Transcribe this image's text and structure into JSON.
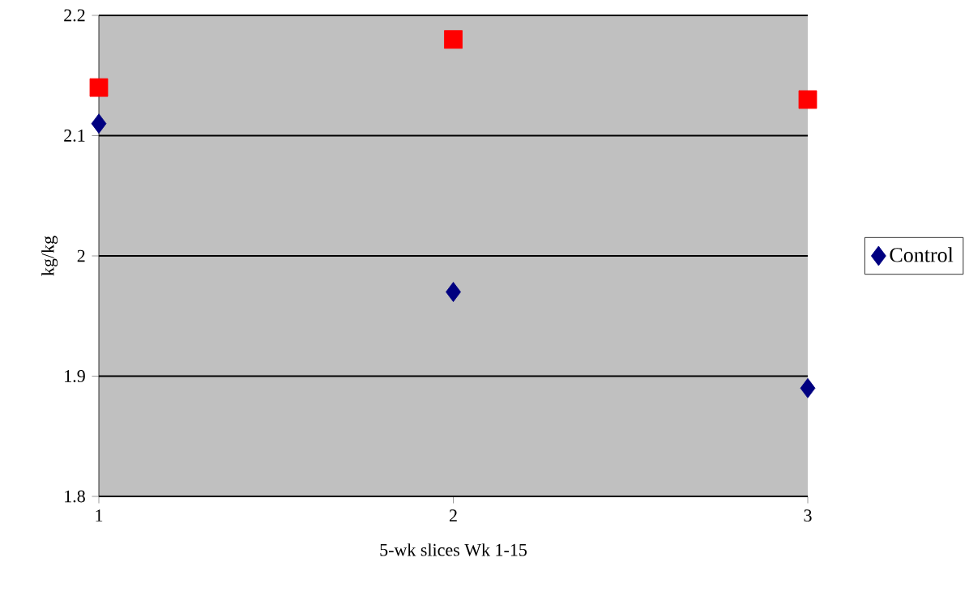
{
  "chart_data": {
    "type": "scatter",
    "xlabel": "5-wk slices Wk 1-15",
    "ylabel": "kg/kg",
    "x": [
      1,
      2,
      3
    ],
    "series": [
      {
        "name": "Control",
        "color": "#000080",
        "marker": "diamond",
        "values": [
          2.11,
          1.97,
          1.89
        ]
      },
      {
        "color": "#ff0000",
        "marker": "square",
        "values": [
          2.14,
          2.18,
          2.13
        ]
      }
    ],
    "xlim": [
      1,
      3
    ],
    "xticks": [
      1,
      2,
      3
    ],
    "ylim": [
      1.8,
      2.2
    ],
    "yticks": [
      1.8,
      1.9,
      2,
      2.1,
      2.2
    ],
    "grid": "y",
    "legend": "right"
  }
}
